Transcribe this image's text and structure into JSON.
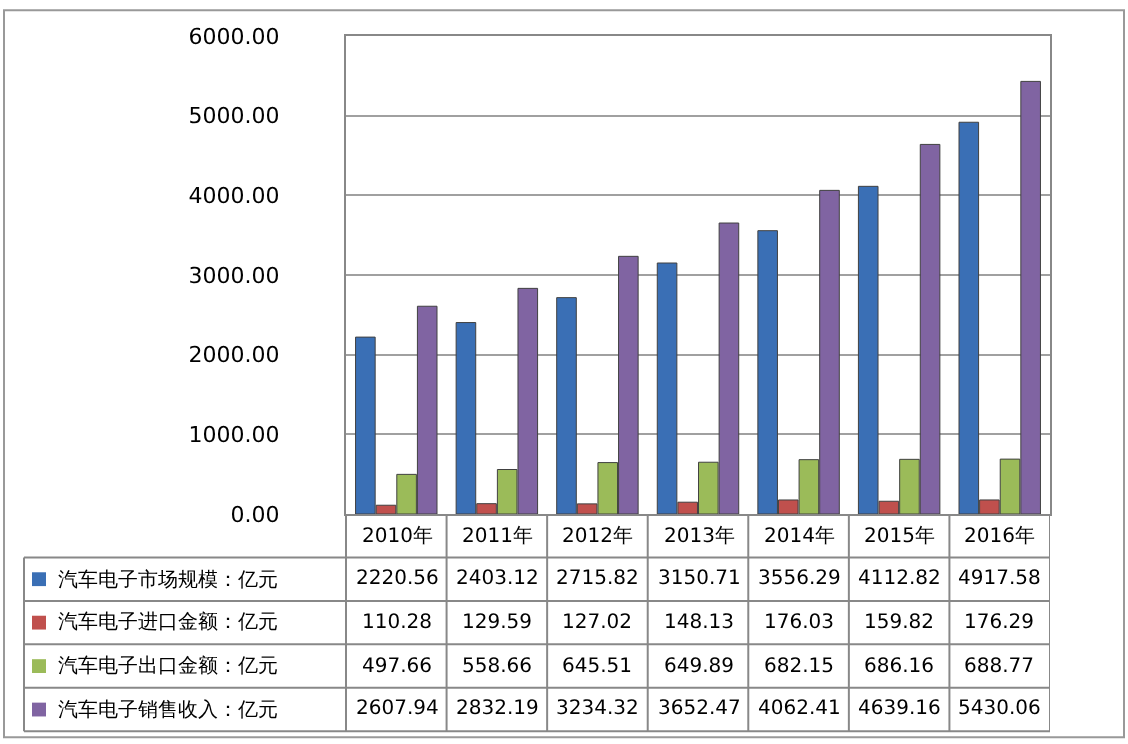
{
  "chart_data": {
    "type": "bar",
    "categories": [
      "2010年",
      "2011年",
      "2012年",
      "2013年",
      "2014年",
      "2015年",
      "2016年"
    ],
    "series": [
      {
        "name": "汽车电子市场规模：亿元",
        "color": "#3a6fb5",
        "values": [
          2220.56,
          2403.12,
          2715.82,
          3150.71,
          3556.29,
          4112.82,
          4917.58
        ]
      },
      {
        "name": "汽车电子进口金额：亿元",
        "color": "#c0504d",
        "values": [
          110.28,
          129.59,
          127.02,
          148.13,
          176.03,
          159.82,
          176.29
        ]
      },
      {
        "name": "汽车电子出口金额：亿元",
        "color": "#9bbb59",
        "values": [
          497.66,
          558.66,
          645.51,
          649.89,
          682.15,
          686.16,
          688.77
        ]
      },
      {
        "name": "汽车电子销售收入：亿元",
        "color": "#8064a2",
        "values": [
          2607.94,
          2832.19,
          3234.32,
          3652.47,
          4062.41,
          4639.16,
          5430.06
        ]
      }
    ],
    "ylim": [
      0,
      6000
    ],
    "yticks": [
      {
        "value": 0,
        "label": "0.00"
      },
      {
        "value": 1000,
        "label": "1000.00"
      },
      {
        "value": 2000,
        "label": "2000.00"
      },
      {
        "value": 3000,
        "label": "3000.00"
      },
      {
        "value": 4000,
        "label": "4000.00"
      },
      {
        "value": 5000,
        "label": "5000.00"
      },
      {
        "value": 6000,
        "label": "6000.00"
      }
    ],
    "grid": "y",
    "data_labels": true,
    "legend": "bottom"
  }
}
